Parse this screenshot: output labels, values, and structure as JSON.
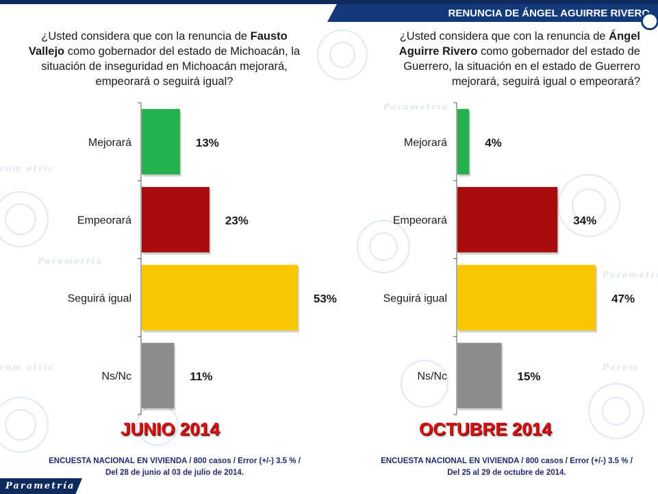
{
  "header": {
    "title": "RENUNCIA DE ÁNGEL AGUIRRE RIVERO"
  },
  "left": {
    "question_pre": "¿Usted considera que con la renuncia de ",
    "question_bold": "Fausto Vallejo",
    "question_post": " como gobernador del estado de Michoacán, la situación de inseguridad en Michoacán mejorará, empeorará o seguirá igual?",
    "period": "JUNIO  2014",
    "note_line1": "ENCUESTA  NACIONAL EN VIVIENDA / 800 casos / Error (+/-) 3.5 % /",
    "note_line2": "Del 28 de junio al 03 de julio de 2014."
  },
  "right": {
    "question_pre": "¿Usted considera que con la renuncia de ",
    "question_bold": "Ángel Aguirre Rivero",
    "question_post": " como gobernador del estado de Guerrero, la situación en el estado de Guerrero mejorará, seguirá igual o empeorará?",
    "period": "OCTUBRE 2014",
    "note_line1": "ENCUESTA  NACIONAL EN VIVIENDA / 800 casos / Error (+/-) 3.5 % /",
    "note_line2": "Del 25 al 29 de octubre de 2014."
  },
  "logo": {
    "text": "Parametría"
  },
  "colors": {
    "mejorara": "#22b14c",
    "empeorara": "#a80c0c",
    "seguira": "#f7c800",
    "nsnc": "#8c8c8c",
    "navy": "#123a7a",
    "period_red": "#e01010"
  },
  "chart_data": [
    {
      "type": "bar",
      "orientation": "horizontal",
      "categories": [
        "Mejorará",
        "Empeorará",
        "Seguirá igual",
        "Ns/Nc"
      ],
      "values": [
        13,
        23,
        53,
        11
      ],
      "value_labels": [
        "13%",
        "23%",
        "53%",
        "11%"
      ],
      "title": "",
      "xlabel": "",
      "ylabel": "",
      "xlim": [
        0,
        60
      ],
      "grid": false
    },
    {
      "type": "bar",
      "orientation": "horizontal",
      "categories": [
        "Mejorará",
        "Empeorará",
        "Seguirá igual",
        "Ns/Nc"
      ],
      "values": [
        4,
        34,
        47,
        15
      ],
      "value_labels": [
        "4%",
        "34%",
        "47%",
        "15%"
      ],
      "title": "",
      "xlabel": "",
      "ylabel": "",
      "xlim": [
        0,
        60
      ],
      "grid": false
    }
  ]
}
